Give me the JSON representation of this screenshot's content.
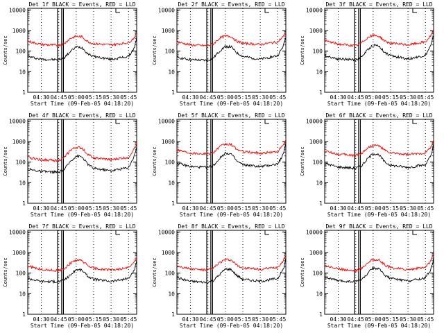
{
  "chart_data": [
    {
      "type": "line",
      "title": "Det 1f BLACK = Events, RED = LLD",
      "ylabel": "Counts/sec",
      "xlabel": "Start Time (09-Feb-05 04:18:20)",
      "x_ticks": [
        "04:30",
        "04:45",
        "05:00",
        "05:15",
        "05:30",
        "05:45"
      ],
      "y_ticks": [
        "1",
        "10",
        "100",
        "1000",
        "10000"
      ],
      "yscale": "log",
      "ylim": [
        1,
        12000
      ],
      "xlim": [
        "04:18:20",
        "05:52:00"
      ],
      "vlines": [
        "04:44",
        "04:47:30",
        "04:49"
      ],
      "legend_marker": "top-right",
      "series": [
        {
          "name": "Events",
          "color": "#000000",
          "x": [
            "04:18:20",
            "04:30",
            "04:45",
            "04:50",
            "04:55",
            "05:00",
            "05:05",
            "05:10",
            "05:15",
            "05:30",
            "05:45",
            "05:50",
            "05:52"
          ],
          "y": [
            55,
            40,
            38,
            50,
            95,
            160,
            150,
            75,
            55,
            40,
            55,
            140,
            450
          ]
        },
        {
          "name": "LLD",
          "color": "#ff0000",
          "x": [
            "04:18:20",
            "04:30",
            "04:45",
            "04:50",
            "04:55",
            "05:00",
            "05:05",
            "05:10",
            "05:15",
            "05:30",
            "05:45",
            "05:50",
            "05:52"
          ],
          "y": [
            300,
            210,
            190,
            240,
            420,
            520,
            500,
            290,
            230,
            200,
            260,
            450,
            750
          ]
        }
      ]
    },
    {
      "type": "line",
      "title": "Det 2f BLACK = Events, RED = LLD",
      "ylabel": "Counts/sec",
      "xlabel": "Start Time (09-Feb-05 04:18:20)",
      "x_ticks": [
        "04:30",
        "04:45",
        "05:00",
        "05:15",
        "05:30",
        "05:45"
      ],
      "y_ticks": [
        "1",
        "10",
        "100",
        "1000",
        "10000"
      ],
      "yscale": "log",
      "ylim": [
        1,
        12000
      ],
      "xlim": [
        "04:18:20",
        "05:52:00"
      ],
      "vlines": [
        "04:44",
        "04:47:30",
        "04:49"
      ],
      "legend_marker": "top-right",
      "series": [
        {
          "name": "Events",
          "color": "#000000",
          "x": [
            "04:18:20",
            "04:30",
            "04:45",
            "04:50",
            "04:55",
            "05:00",
            "05:05",
            "05:10",
            "05:15",
            "05:30",
            "05:45",
            "05:50",
            "05:52"
          ],
          "y": [
            50,
            38,
            35,
            48,
            100,
            170,
            160,
            80,
            55,
            40,
            60,
            180,
            500
          ]
        },
        {
          "name": "LLD",
          "color": "#ff0000",
          "x": [
            "04:18:20",
            "04:30",
            "04:45",
            "04:50",
            "04:55",
            "05:00",
            "05:05",
            "05:10",
            "05:15",
            "05:30",
            "05:45",
            "05:50",
            "05:52"
          ],
          "y": [
            280,
            200,
            180,
            230,
            430,
            540,
            520,
            300,
            240,
            210,
            280,
            520,
            800
          ]
        }
      ]
    },
    {
      "type": "line",
      "title": "Det 3f BLACK = Events, RED = LLD",
      "ylabel": "Counts/sec",
      "xlabel": "Start Time (09-Feb-05 04:18:20)",
      "x_ticks": [
        "04:30",
        "04:45",
        "05:00",
        "05:15",
        "05:30",
        "05:45"
      ],
      "y_ticks": [
        "1",
        "10",
        "100",
        "1000",
        "10000"
      ],
      "yscale": "log",
      "ylim": [
        1,
        12000
      ],
      "xlim": [
        "04:18:20",
        "05:52:00"
      ],
      "vlines": [
        "04:44",
        "04:47:30",
        "04:49"
      ],
      "legend_marker": "top-right",
      "series": [
        {
          "name": "Events",
          "color": "#000000",
          "x": [
            "04:18:20",
            "04:30",
            "04:45",
            "04:50",
            "04:55",
            "05:00",
            "05:05",
            "05:10",
            "05:15",
            "05:30",
            "05:45",
            "05:50",
            "05:52"
          ],
          "y": [
            60,
            42,
            38,
            52,
            110,
            200,
            180,
            85,
            60,
            42,
            62,
            200,
            600
          ]
        },
        {
          "name": "LLD",
          "color": "#ff0000",
          "x": [
            "04:18:20",
            "04:30",
            "04:45",
            "04:50",
            "04:55",
            "05:00",
            "05:05",
            "05:10",
            "05:15",
            "05:30",
            "05:45",
            "05:50",
            "05:52"
          ],
          "y": [
            320,
            220,
            180,
            250,
            450,
            580,
            540,
            310,
            240,
            200,
            280,
            600,
            1000
          ]
        }
      ]
    },
    {
      "type": "line",
      "title": "Det 4f BLACK = Events, RED = LLD",
      "ylabel": "Counts/sec",
      "xlabel": "Start Time (09-Feb-05 04:18:20)",
      "x_ticks": [
        "04:30",
        "04:45",
        "05:00",
        "05:15",
        "05:30",
        "05:45"
      ],
      "y_ticks": [
        "1",
        "10",
        "100",
        "1000",
        "10000"
      ],
      "yscale": "log",
      "ylim": [
        1,
        12000
      ],
      "xlim": [
        "04:18:20",
        "05:52:00"
      ],
      "vlines": [
        "04:44",
        "04:47:30",
        "04:49"
      ],
      "legend_marker": "top-right",
      "series": [
        {
          "name": "Events",
          "color": "#000000",
          "x": [
            "04:18:20",
            "04:30",
            "04:45",
            "04:50",
            "04:55",
            "05:00",
            "05:05",
            "05:10",
            "05:15",
            "05:30",
            "05:45",
            "05:50",
            "05:52"
          ],
          "y": [
            45,
            35,
            32,
            45,
            110,
            200,
            180,
            80,
            50,
            38,
            55,
            200,
            550
          ]
        },
        {
          "name": "LLD",
          "color": "#ff0000",
          "x": [
            "04:18:20",
            "04:30",
            "04:45",
            "04:50",
            "04:55",
            "05:00",
            "05:05",
            "05:10",
            "05:15",
            "05:30",
            "05:45",
            "05:50",
            "05:52"
          ],
          "y": [
            170,
            130,
            120,
            170,
            380,
            520,
            480,
            240,
            160,
            130,
            170,
            450,
            900
          ]
        }
      ]
    },
    {
      "type": "line",
      "title": "Det 5f BLACK = Events, RED = LLD",
      "ylabel": "Counts/sec",
      "xlabel": "Start Time (09-Feb-05 04:18:20)",
      "x_ticks": [
        "04:30",
        "04:45",
        "05:00",
        "05:15",
        "05:30",
        "05:45"
      ],
      "y_ticks": [
        "1",
        "10",
        "100",
        "1000",
        "10000"
      ],
      "yscale": "log",
      "ylim": [
        1,
        12000
      ],
      "xlim": [
        "04:18:20",
        "05:52:00"
      ],
      "vlines": [
        "04:44",
        "04:47:30",
        "04:49"
      ],
      "legend_marker": "top-right",
      "series": [
        {
          "name": "Events",
          "color": "#000000",
          "x": [
            "04:18:20",
            "04:30",
            "04:45",
            "04:50",
            "04:55",
            "05:00",
            "05:05",
            "05:10",
            "05:15",
            "05:30",
            "05:45",
            "05:50",
            "05:52"
          ],
          "y": [
            90,
            60,
            55,
            70,
            150,
            280,
            250,
            110,
            75,
            60,
            80,
            250,
            800
          ]
        },
        {
          "name": "LLD",
          "color": "#ff0000",
          "x": [
            "04:18:20",
            "04:30",
            "04:45",
            "04:50",
            "04:55",
            "05:00",
            "05:05",
            "05:10",
            "05:15",
            "05:30",
            "05:45",
            "05:50",
            "05:52"
          ],
          "y": [
            400,
            280,
            250,
            300,
            550,
            750,
            700,
            420,
            320,
            270,
            320,
            700,
            1200
          ]
        }
      ]
    },
    {
      "type": "line",
      "title": "Det 6f BLACK = Events, RED = LLD",
      "ylabel": "Counts/sec",
      "xlabel": "Start Time (09-Feb-05 04:18:20)",
      "x_ticks": [
        "04:30",
        "04:45",
        "05:00",
        "05:15",
        "05:30",
        "05:45"
      ],
      "y_ticks": [
        "1",
        "10",
        "100",
        "1000",
        "10000"
      ],
      "yscale": "log",
      "ylim": [
        1,
        12000
      ],
      "xlim": [
        "04:18:20",
        "05:52:00"
      ],
      "vlines": [
        "04:44",
        "04:47:30",
        "04:49"
      ],
      "legend_marker": "top-right",
      "series": [
        {
          "name": "Events",
          "color": "#000000",
          "x": [
            "04:18:20",
            "04:30",
            "04:45",
            "04:50",
            "04:55",
            "05:00",
            "05:05",
            "05:10",
            "05:15",
            "05:30",
            "05:45",
            "05:50",
            "05:52"
          ],
          "y": [
            85,
            58,
            50,
            65,
            140,
            260,
            230,
            100,
            70,
            55,
            75,
            220,
            700
          ]
        },
        {
          "name": "LLD",
          "color": "#ff0000",
          "x": [
            "04:18:20",
            "04:30",
            "04:45",
            "04:50",
            "04:55",
            "05:00",
            "05:05",
            "05:10",
            "05:15",
            "05:30",
            "05:45",
            "05:50",
            "05:52"
          ],
          "y": [
            350,
            240,
            210,
            260,
            480,
            650,
            620,
            370,
            280,
            230,
            280,
            600,
            1100
          ]
        }
      ]
    },
    {
      "type": "line",
      "title": "Det 7f BLACK = Events, RED = LLD",
      "ylabel": "Counts/sec",
      "xlabel": "Start Time (09-Feb-05 04:18:20)",
      "x_ticks": [
        "04:30",
        "04:45",
        "05:00",
        "05:15",
        "05:30",
        "05:45"
      ],
      "y_ticks": [
        "1",
        "10",
        "100",
        "1000",
        "10000"
      ],
      "yscale": "log",
      "ylim": [
        1,
        12000
      ],
      "xlim": [
        "04:18:20",
        "05:52:00"
      ],
      "vlines": [
        "04:44",
        "04:47:30",
        "04:49"
      ],
      "legend_marker": "top-right",
      "series": [
        {
          "name": "Events",
          "color": "#000000",
          "x": [
            "04:18:20",
            "04:30",
            "04:45",
            "04:50",
            "04:55",
            "05:00",
            "05:05",
            "05:10",
            "05:15",
            "05:30",
            "05:45",
            "05:50",
            "05:52"
          ],
          "y": [
            55,
            40,
            38,
            48,
            80,
            150,
            140,
            70,
            50,
            40,
            55,
            130,
            400
          ]
        },
        {
          "name": "LLD",
          "color": "#ff0000",
          "x": [
            "04:18:20",
            "04:30",
            "04:45",
            "04:50",
            "04:55",
            "05:00",
            "05:05",
            "05:10",
            "05:15",
            "05:30",
            "05:45",
            "05:50",
            "05:52"
          ],
          "y": [
            220,
            150,
            130,
            170,
            300,
            420,
            400,
            230,
            170,
            140,
            180,
            350,
            650
          ]
        }
      ]
    },
    {
      "type": "line",
      "title": "Det 8f BLACK = Events, RED = LLD",
      "ylabel": "Counts/sec",
      "xlabel": "Start Time (09-Feb-05 04:18:20)",
      "x_ticks": [
        "04:30",
        "04:45",
        "05:00",
        "05:15",
        "05:30",
        "05:45"
      ],
      "y_ticks": [
        "1",
        "10",
        "100",
        "1000",
        "10000"
      ],
      "yscale": "log",
      "ylim": [
        1,
        12000
      ],
      "xlim": [
        "04:18:20",
        "05:52:00"
      ],
      "vlines": [
        "04:44",
        "04:47:30",
        "04:49"
      ],
      "legend_marker": "top-right",
      "series": [
        {
          "name": "Events",
          "color": "#000000",
          "x": [
            "04:18:20",
            "04:30",
            "04:45",
            "04:50",
            "04:55",
            "05:00",
            "05:05",
            "05:10",
            "05:15",
            "05:30",
            "05:45",
            "05:50",
            "05:52"
          ],
          "y": [
            60,
            40,
            35,
            45,
            85,
            160,
            150,
            75,
            50,
            40,
            55,
            160,
            500
          ]
        },
        {
          "name": "LLD",
          "color": "#ff0000",
          "x": [
            "04:18:20",
            "04:30",
            "04:45",
            "04:50",
            "04:55",
            "05:00",
            "05:05",
            "05:10",
            "05:15",
            "05:30",
            "05:45",
            "05:50",
            "05:52"
          ],
          "y": [
            230,
            160,
            140,
            180,
            320,
            450,
            420,
            240,
            180,
            150,
            190,
            400,
            850
          ]
        }
      ]
    },
    {
      "type": "line",
      "title": "Det 9f BLACK = Events, RED = LLD",
      "ylabel": "Counts/sec",
      "xlabel": "Start Time (09-Feb-05 04:18:20)",
      "x_ticks": [
        "04:30",
        "04:45",
        "05:00",
        "05:15",
        "05:30",
        "05:45"
      ],
      "y_ticks": [
        "1",
        "10",
        "100",
        "1000",
        "10000"
      ],
      "yscale": "log",
      "ylim": [
        1,
        12000
      ],
      "xlim": [
        "04:18:20",
        "05:52:00"
      ],
      "vlines": [
        "04:44",
        "04:47:30",
        "04:49"
      ],
      "legend_marker": "top-right",
      "series": [
        {
          "name": "Events",
          "color": "#000000",
          "x": [
            "04:18:20",
            "04:30",
            "04:45",
            "04:50",
            "04:55",
            "05:00",
            "05:05",
            "05:10",
            "05:15",
            "05:30",
            "05:45",
            "05:50",
            "05:52"
          ],
          "y": [
            65,
            42,
            38,
            48,
            90,
            180,
            160,
            80,
            55,
            42,
            58,
            170,
            550
          ]
        },
        {
          "name": "LLD",
          "color": "#ff0000",
          "x": [
            "04:18:20",
            "04:30",
            "04:45",
            "04:50",
            "04:55",
            "05:00",
            "05:05",
            "05:10",
            "05:15",
            "05:30",
            "05:45",
            "05:50",
            "05:52"
          ],
          "y": [
            240,
            160,
            130,
            170,
            310,
            460,
            430,
            250,
            180,
            150,
            190,
            420,
            900
          ]
        }
      ]
    }
  ]
}
